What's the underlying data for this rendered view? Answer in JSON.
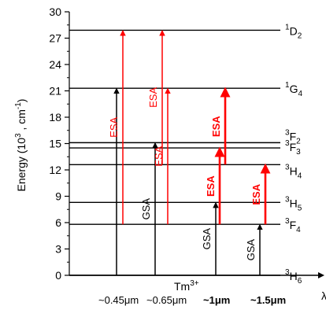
{
  "chart_data": {
    "type": "energy-level-diagram",
    "ylabel": "Energy (10^3 , cm^-1)",
    "ylabel_parts": {
      "main": "Energy (10",
      "sup1": "3",
      "mid": " , cm",
      "sup2": "-1",
      "end": ")"
    },
    "ylim": [
      0,
      30
    ],
    "yticks": [
      "0",
      "3",
      "6",
      "9",
      "12",
      "15",
      "18",
      "21",
      "24",
      "27",
      "30"
    ],
    "ion": {
      "text": "Tm",
      "sup": "3+"
    },
    "levels": [
      {
        "name": "3H6",
        "pre": "3",
        "main": "H",
        "sub": "6",
        "energy": 0
      },
      {
        "name": "3F4",
        "pre": "3",
        "main": "F",
        "sub": "4",
        "energy": 5.8
      },
      {
        "name": "3H5",
        "pre": "3",
        "main": "H",
        "sub": "5",
        "energy": 8.3
      },
      {
        "name": "3H4",
        "pre": "3",
        "main": "H",
        "sub": "4",
        "energy": 12.6
      },
      {
        "name": "3F3",
        "pre": "3",
        "main": "F",
        "sub": "3",
        "energy": 14.5
      },
      {
        "name": "3F2",
        "pre": "3",
        "main": "F",
        "sub": "2",
        "energy": 15.1
      },
      {
        "name": "1G4",
        "pre": "1",
        "main": "G",
        "sub": "4",
        "energy": 21.3
      },
      {
        "name": "1D2",
        "pre": "1",
        "main": "D",
        "sub": "2",
        "energy": 27.9
      }
    ],
    "transitions": [
      {
        "group": 0,
        "type": "GSA",
        "label": "",
        "from": 0,
        "to": 21.3,
        "color": "#000000"
      },
      {
        "group": 0,
        "type": "ESA",
        "label": "ESA",
        "from": 5.8,
        "to": 27.9,
        "color": "#ff0000"
      },
      {
        "group": 1,
        "type": "GSA",
        "label": "GSA",
        "from": 0,
        "to": 15.1,
        "color": "#000000"
      },
      {
        "group": 1,
        "type": "ESA",
        "label": "ESA",
        "from": 12.6,
        "to": 27.9,
        "color": "#ff0000"
      },
      {
        "group": 1,
        "type": "ESA",
        "label": "ESA",
        "from": 5.8,
        "to": 21.3,
        "color": "#ff0000"
      },
      {
        "group": 2,
        "type": "GSA",
        "label": "GSA",
        "from": 0,
        "to": 8.3,
        "color": "#000000"
      },
      {
        "group": 2,
        "type": "ESA",
        "label": "ESA",
        "from": 5.8,
        "to": 14.5,
        "color": "#ff0000"
      },
      {
        "group": 2,
        "type": "ESA",
        "label": "ESA",
        "from": 12.6,
        "to": 21.3,
        "color": "#ff0000"
      },
      {
        "group": 3,
        "type": "GSA",
        "label": "GSA",
        "from": 0,
        "to": 5.8,
        "color": "#000000"
      },
      {
        "group": 3,
        "type": "ESA",
        "label": "ESA",
        "from": 5.8,
        "to": 12.6,
        "color": "#ff0000"
      }
    ],
    "gsa_label_group0": "GSA",
    "wavelengths": [
      {
        "prefix": "~",
        "value": "0.45",
        "unit": "μm",
        "bold": false
      },
      {
        "prefix": "~",
        "value": "0.65",
        "unit": "μm",
        "bold": false
      },
      {
        "prefix": "~",
        "value": "1",
        "unit": "μm",
        "bold": true
      },
      {
        "prefix": "~",
        "value": "1.5",
        "unit": "μm",
        "bold": true
      }
    ],
    "x_arrow_glyph": "λ",
    "colors": {
      "esa": "#ff0000",
      "gsa": "#000000",
      "axis": "#000000"
    }
  }
}
